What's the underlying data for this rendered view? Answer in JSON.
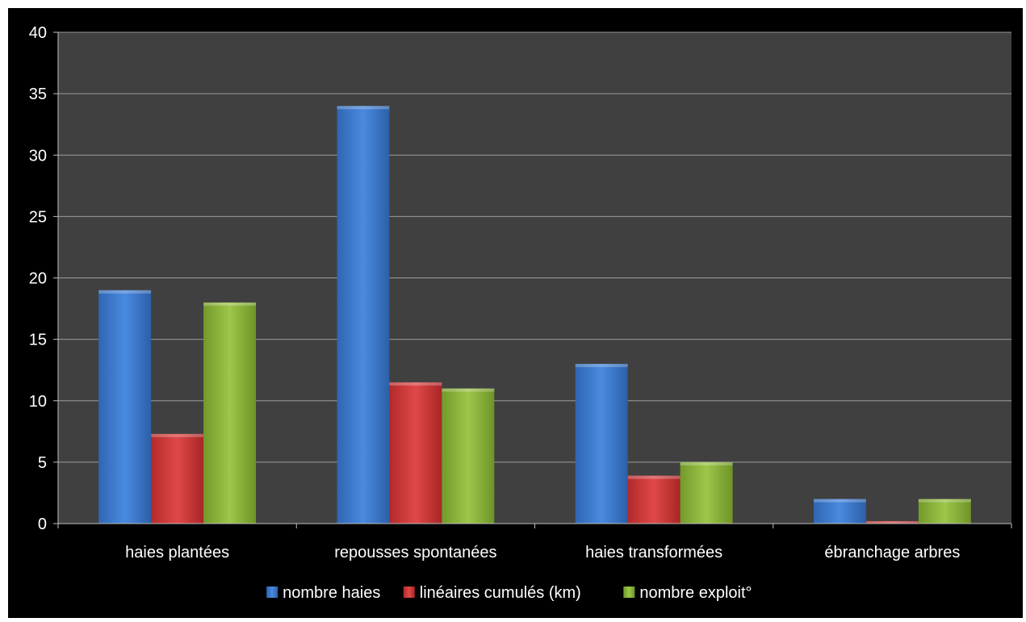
{
  "chart_data": {
    "type": "bar",
    "title": "",
    "xlabel": "",
    "ylabel": "",
    "categories": [
      "haies plantées",
      "repousses spontanées",
      "haies transformées",
      "ébranchage arbres"
    ],
    "series": [
      {
        "name": "nombre haies",
        "values": [
          19,
          34,
          13,
          2
        ],
        "color": "#3f7fd6"
      },
      {
        "name": "linéaires cumulés (km)",
        "values": [
          7.3,
          11.5,
          3.9,
          0.2
        ],
        "color": "#d63a3a"
      },
      {
        "name": "nombre exploit°",
        "values": [
          18,
          11,
          5,
          2
        ],
        "color": "#8fba3c"
      }
    ],
    "ylim": [
      0,
      40
    ],
    "yticks": [
      "0",
      "5",
      "10",
      "15",
      "20",
      "25",
      "30",
      "35",
      "40"
    ],
    "grid": true,
    "legend_position": "bottom",
    "plot_background": "#404040",
    "frame_background": "#000000"
  }
}
